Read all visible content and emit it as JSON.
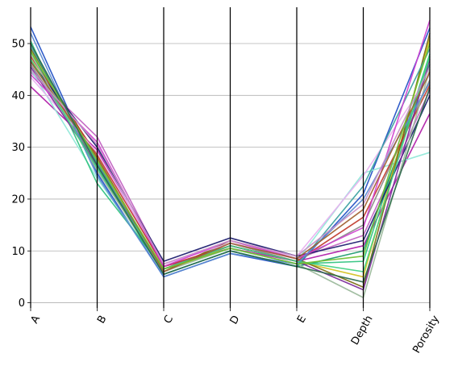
{
  "chart_data": {
    "type": "parallel_coordinates",
    "axes": [
      "A",
      "B",
      "C",
      "D",
      "E",
      "Depth",
      "Porosity"
    ],
    "ylim": [
      -1,
      57
    ],
    "yticks": [
      0,
      10,
      20,
      30,
      40,
      50
    ],
    "grid": "horizontal",
    "legend": "none",
    "series": [
      {
        "color": "#1f4fc4",
        "values": [
          53.2,
          25.0,
          5.0,
          9.5,
          7.0,
          21.0,
          53.0
        ]
      },
      {
        "color": "#b01ca8",
        "values": [
          41.7,
          29.5,
          7.0,
          10.5,
          8.0,
          11.0,
          36.5
        ]
      },
      {
        "color": "#c060c0",
        "values": [
          44.5,
          32.0,
          7.5,
          11.5,
          8.5,
          13.0,
          41.0
        ]
      },
      {
        "color": "#8fe8d8",
        "values": [
          45.0,
          24.0,
          6.0,
          11.0,
          8.0,
          25.0,
          29.0
        ]
      },
      {
        "color": "#2ec27e",
        "values": [
          50.5,
          23.0,
          6.5,
          10.5,
          7.5,
          8.0,
          48.0
        ]
      },
      {
        "color": "#1a9a6c",
        "values": [
          48.5,
          26.0,
          5.5,
          10.0,
          7.0,
          10.0,
          46.0
        ]
      },
      {
        "color": "#888888",
        "values": [
          46.0,
          27.0,
          6.5,
          11.5,
          8.0,
          15.0,
          43.0
        ]
      },
      {
        "color": "#d4c020",
        "values": [
          47.0,
          27.5,
          6.0,
          11.0,
          8.0,
          5.0,
          51.0
        ]
      },
      {
        "color": "#7a6a10",
        "values": [
          49.0,
          28.0,
          6.0,
          12.0,
          8.5,
          3.0,
          52.0
        ]
      },
      {
        "color": "#c03a2b",
        "values": [
          47.5,
          28.5,
          7.0,
          11.0,
          8.0,
          16.5,
          42.0
        ]
      },
      {
        "color": "#e8b0f0",
        "values": [
          43.5,
          29.0,
          7.5,
          11.5,
          9.0,
          24.5,
          44.0
        ]
      },
      {
        "color": "#1a1a6e",
        "values": [
          46.5,
          30.0,
          8.0,
          12.5,
          9.0,
          12.0,
          40.0
        ]
      },
      {
        "color": "#7a2a9a",
        "values": [
          45.5,
          26.5,
          6.5,
          11.0,
          8.0,
          2.5,
          47.0
        ]
      },
      {
        "color": "#9ab89a",
        "values": [
          48.0,
          25.5,
          6.0,
          10.5,
          7.5,
          1.0,
          45.0
        ]
      },
      {
        "color": "#3aa0a0",
        "values": [
          49.5,
          27.0,
          5.5,
          10.0,
          7.0,
          22.5,
          49.0
        ]
      },
      {
        "color": "#d040d0",
        "values": [
          44.0,
          31.0,
          7.0,
          12.0,
          8.5,
          14.5,
          54.5
        ]
      },
      {
        "color": "#5a8ad0",
        "values": [
          52.0,
          24.5,
          5.0,
          9.5,
          7.5,
          20.0,
          42.5
        ]
      },
      {
        "color": "#40d080",
        "values": [
          47.0,
          26.0,
          6.5,
          11.0,
          8.0,
          6.0,
          47.5
        ]
      },
      {
        "color": "#a06030",
        "values": [
          46.5,
          28.0,
          6.0,
          11.5,
          8.5,
          18.0,
          44.5
        ]
      },
      {
        "color": "#70c030",
        "values": [
          48.5,
          27.5,
          6.5,
          10.5,
          7.5,
          9.0,
          50.0
        ]
      },
      {
        "color": "#c890c8",
        "values": [
          45.0,
          30.5,
          7.5,
          12.0,
          9.0,
          19.0,
          45.5
        ]
      },
      {
        "color": "#2a6a4a",
        "values": [
          50.0,
          26.5,
          5.5,
          10.0,
          7.0,
          4.0,
          41.5
        ]
      }
    ]
  }
}
